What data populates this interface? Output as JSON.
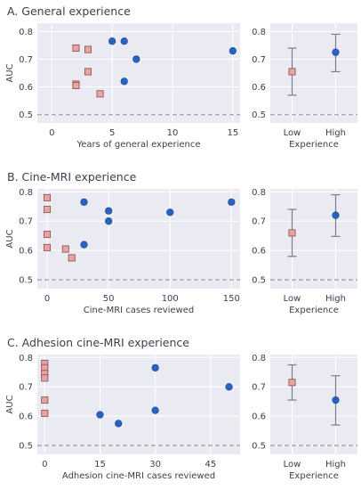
{
  "colors": {
    "background": "#eaeaf2",
    "grid": "#ffffff",
    "text": "#3a3f4b",
    "low_marker": "#e8a3a3",
    "low_edge": "#8a4b4b",
    "high_marker": "#2763c4",
    "high_edge": "#1b3f7f",
    "errorbar": "#7a7f8c",
    "reference_line": "#9a9aa6"
  },
  "chart_data": [
    {
      "type": "scatter",
      "title": "A. General experience",
      "xlabel": "Years of general experience",
      "ylabel": "AUC",
      "xlim": [
        -1.2,
        15.6
      ],
      "ylim": [
        0.47,
        0.83
      ],
      "xticks": [
        0,
        5,
        10,
        15
      ],
      "yticks": [
        0.5,
        0.6,
        0.7,
        0.8
      ],
      "grid": true,
      "reference_y": 0.5,
      "series": [
        {
          "group": "low",
          "points": [
            [
              2,
              0.74
            ],
            [
              3,
              0.735
            ],
            [
              3,
              0.655
            ],
            [
              2,
              0.61
            ],
            [
              2,
              0.605
            ],
            [
              4,
              0.575
            ]
          ]
        },
        {
          "group": "high",
          "points": [
            [
              5,
              0.765
            ],
            [
              6,
              0.765
            ],
            [
              7,
              0.7
            ],
            [
              6,
              0.62
            ],
            [
              15,
              0.73
            ]
          ]
        }
      ]
    },
    {
      "type": "scatter",
      "title": "",
      "xlabel": "Experience",
      "ylabel": "",
      "categories": [
        "Low",
        "High"
      ],
      "ylim": [
        0.47,
        0.83
      ],
      "yticks": [
        0.5,
        0.6,
        0.7,
        0.8
      ],
      "grid": true,
      "reference_y": 0.5,
      "points": [
        {
          "group": "low",
          "category": "Low",
          "value": 0.655,
          "err_low": 0.57,
          "err_high": 0.74
        },
        {
          "group": "high",
          "category": "High",
          "value": 0.725,
          "err_low": 0.655,
          "err_high": 0.79
        }
      ]
    },
    {
      "type": "scatter",
      "title": "B. Cine-MRI experience",
      "xlabel": "Cine-MRI cases reviewed",
      "ylabel": "AUC",
      "xlim": [
        -8,
        157
      ],
      "ylim": [
        0.47,
        0.81
      ],
      "xticks": [
        0,
        50,
        100,
        150
      ],
      "yticks": [
        0.5,
        0.6,
        0.7,
        0.8
      ],
      "grid": true,
      "reference_y": 0.5,
      "series": [
        {
          "group": "low",
          "points": [
            [
              0,
              0.78
            ],
            [
              0,
              0.74
            ],
            [
              0,
              0.655
            ],
            [
              0,
              0.61
            ],
            [
              15,
              0.605
            ],
            [
              20,
              0.575
            ]
          ]
        },
        {
          "group": "high",
          "points": [
            [
              30,
              0.765
            ],
            [
              50,
              0.735
            ],
            [
              50,
              0.7
            ],
            [
              30,
              0.62
            ],
            [
              100,
              0.73
            ],
            [
              150,
              0.765
            ]
          ]
        }
      ]
    },
    {
      "type": "scatter",
      "title": "",
      "xlabel": "Experience",
      "ylabel": "",
      "categories": [
        "Low",
        "High"
      ],
      "ylim": [
        0.47,
        0.81
      ],
      "yticks": [
        0.5,
        0.6,
        0.7,
        0.8
      ],
      "grid": true,
      "reference_y": 0.5,
      "points": [
        {
          "group": "low",
          "category": "Low",
          "value": 0.66,
          "err_low": 0.58,
          "err_high": 0.74
        },
        {
          "group": "high",
          "category": "High",
          "value": 0.72,
          "err_low": 0.648,
          "err_high": 0.79
        }
      ]
    },
    {
      "type": "scatter",
      "title": "C. Adhesion cine-MRI experience",
      "xlabel": "Adhesion cine-MRI cases reviewed",
      "ylabel": "AUC",
      "xlim": [
        -2,
        53
      ],
      "ylim": [
        0.47,
        0.81
      ],
      "xticks": [
        0,
        15,
        30,
        45
      ],
      "yticks": [
        0.5,
        0.6,
        0.7,
        0.8
      ],
      "grid": true,
      "reference_y": 0.5,
      "series": [
        {
          "group": "low",
          "points": [
            [
              0,
              0.78
            ],
            [
              0,
              0.765
            ],
            [
              0,
              0.745
            ],
            [
              0,
              0.73
            ],
            [
              0,
              0.655
            ],
            [
              0,
              0.61
            ]
          ]
        },
        {
          "group": "high",
          "points": [
            [
              30,
              0.765
            ],
            [
              50,
              0.7
            ],
            [
              15,
              0.605
            ],
            [
              30,
              0.62
            ],
            [
              20,
              0.575
            ]
          ]
        }
      ]
    },
    {
      "type": "scatter",
      "title": "",
      "xlabel": "Experience",
      "ylabel": "",
      "categories": [
        "Low",
        "High"
      ],
      "ylim": [
        0.47,
        0.81
      ],
      "yticks": [
        0.5,
        0.6,
        0.7,
        0.8
      ],
      "grid": true,
      "reference_y": 0.5,
      "points": [
        {
          "group": "low",
          "category": "Low",
          "value": 0.715,
          "err_low": 0.655,
          "err_high": 0.775
        },
        {
          "group": "high",
          "category": "High",
          "value": 0.655,
          "err_low": 0.57,
          "err_high": 0.738
        }
      ]
    }
  ]
}
